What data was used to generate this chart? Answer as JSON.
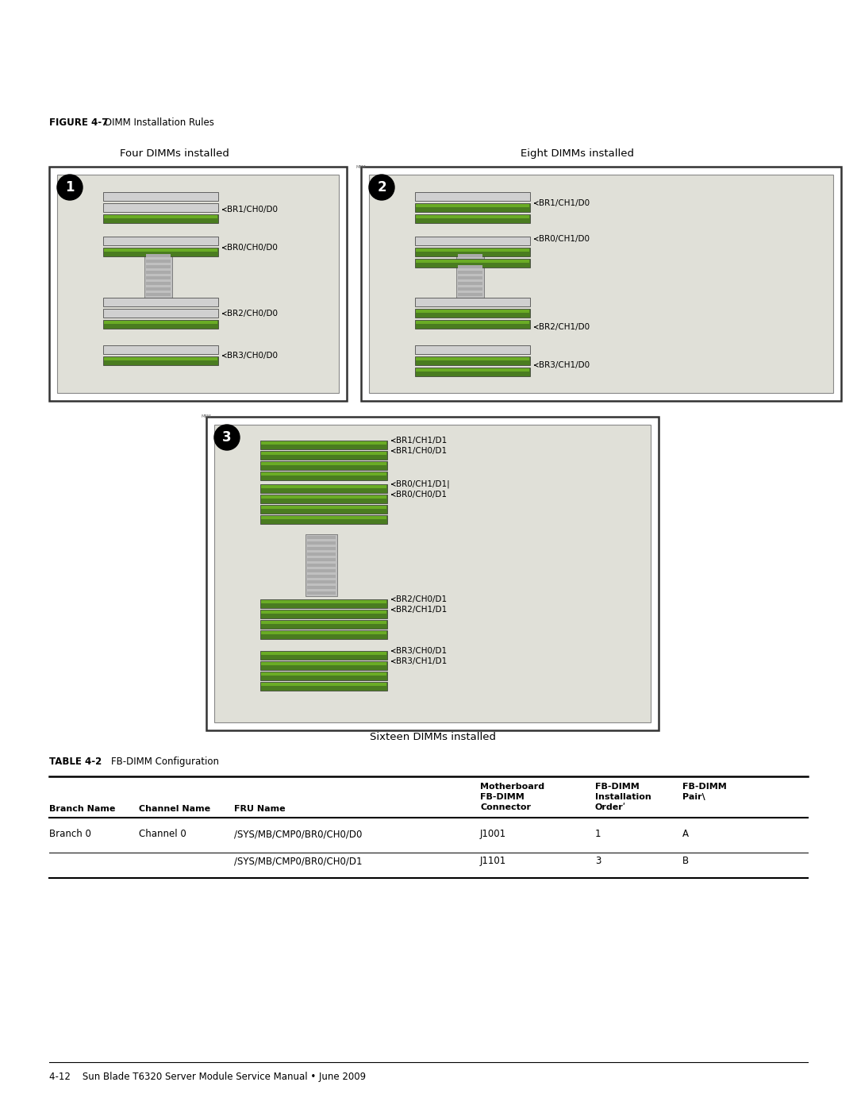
{
  "page_bg": "#ffffff",
  "figure_label": "FIGURE 4-7",
  "figure_title": "  DIMM Installation Rules",
  "diagram1_title": "Four DIMMs installed",
  "diagram2_title": "Eight DIMMs installed",
  "diagram3_title": "Sixteen DIMMs installed",
  "table_label": "TABLE 4-2",
  "table_title": "   FB-DIMM Configuration",
  "footer_text": "4-12    Sun Blade T6320 Server Module Service Manual • June 2009",
  "dimm_green": "#4a7c20",
  "dimm_gray_light": "#d0d0d0",
  "dimm_gray_med": "#aaaaaa",
  "board_bg": "#e8e8e0",
  "board_border": "#555555",
  "table_data": [
    [
      "Branch 0",
      "Channel 0",
      "/SYS/MB/CMP0/BR0/CH0/D0",
      "J1001",
      "1",
      "A"
    ],
    [
      "",
      "",
      "/SYS/MB/CMP0/BR0/CH0/D1",
      "J1101",
      "3",
      "B"
    ]
  ]
}
